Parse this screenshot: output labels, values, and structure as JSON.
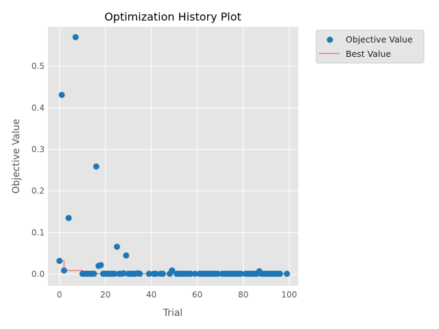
{
  "chart_data": {
    "type": "scatter",
    "title": "Optimization History Plot",
    "xlabel": "Trial",
    "ylabel": "Objective Value",
    "xlim": [
      -5,
      104
    ],
    "ylim": [
      -0.028,
      0.595
    ],
    "xticks": [
      0,
      20,
      40,
      60,
      80,
      100
    ],
    "yticks": [
      0.0,
      0.1,
      0.2,
      0.3,
      0.4,
      0.5
    ],
    "xtick_labels": [
      "0",
      "20",
      "40",
      "60",
      "80",
      "100"
    ],
    "ytick_labels": [
      "0.0",
      "0.1",
      "0.2",
      "0.3",
      "0.4",
      "0.5"
    ],
    "grid": true,
    "legend_position": "outside-top-right",
    "colors": {
      "scatter": "#1f77b4",
      "best_line": "#e8827e",
      "plot_bg": "#e5e5e5",
      "grid": "#ffffff"
    },
    "series": [
      {
        "name": "Objective Value",
        "kind": "scatter",
        "points": [
          [
            0,
            0.032
          ],
          [
            1,
            0.431
          ],
          [
            2,
            0.009
          ],
          [
            4,
            0.135
          ],
          [
            7,
            0.57
          ],
          [
            10,
            0.001
          ],
          [
            11,
            0.001
          ],
          [
            12,
            0.001
          ],
          [
            13,
            0.001
          ],
          [
            14,
            0.001
          ],
          [
            15,
            0.001
          ],
          [
            16,
            0.259
          ],
          [
            17,
            0.02
          ],
          [
            18,
            0.022
          ],
          [
            19,
            0.001
          ],
          [
            20,
            0.001
          ],
          [
            21,
            0.001
          ],
          [
            22,
            0.001
          ],
          [
            23,
            0.001
          ],
          [
            24,
            0.001
          ],
          [
            25,
            0.066
          ],
          [
            26,
            0.001
          ],
          [
            27,
            0.001
          ],
          [
            28,
            0.002
          ],
          [
            29,
            0.045
          ],
          [
            30,
            0.001
          ],
          [
            31,
            0.001
          ],
          [
            32,
            0.001
          ],
          [
            33,
            0.001
          ],
          [
            34,
            0.002
          ],
          [
            35,
            0.001
          ],
          [
            39,
            0.001
          ],
          [
            41,
            0.001
          ],
          [
            42,
            0.001
          ],
          [
            44,
            0.001
          ],
          [
            45,
            0.001
          ],
          [
            48,
            0.001
          ],
          [
            49,
            0.009
          ],
          [
            51,
            0.001
          ],
          [
            52,
            0.001
          ],
          [
            53,
            0.001
          ],
          [
            54,
            0.001
          ],
          [
            55,
            0.001
          ],
          [
            56,
            0.001
          ],
          [
            57,
            0.001
          ],
          [
            59,
            0.001
          ],
          [
            61,
            0.001
          ],
          [
            62,
            0.001
          ],
          [
            63,
            0.001
          ],
          [
            64,
            0.001
          ],
          [
            65,
            0.001
          ],
          [
            66,
            0.001
          ],
          [
            67,
            0.001
          ],
          [
            68,
            0.001
          ],
          [
            69,
            0.001
          ],
          [
            71,
            0.001
          ],
          [
            72,
            0.001
          ],
          [
            73,
            0.001
          ],
          [
            74,
            0.001
          ],
          [
            75,
            0.001
          ],
          [
            76,
            0.001
          ],
          [
            77,
            0.001
          ],
          [
            78,
            0.001
          ],
          [
            79,
            0.001
          ],
          [
            81,
            0.001
          ],
          [
            82,
            0.001
          ],
          [
            83,
            0.001
          ],
          [
            84,
            0.001
          ],
          [
            85,
            0.001
          ],
          [
            86,
            0.001
          ],
          [
            87,
            0.007
          ],
          [
            88,
            0.001
          ],
          [
            89,
            0.001
          ],
          [
            90,
            0.001
          ],
          [
            91,
            0.001
          ],
          [
            92,
            0.001
          ],
          [
            93,
            0.001
          ],
          [
            94,
            0.001
          ],
          [
            95,
            0.001
          ],
          [
            96,
            0.001
          ],
          [
            99,
            0.001
          ]
        ]
      },
      {
        "name": "Best Value",
        "kind": "step-line",
        "points": [
          [
            0,
            0.032
          ],
          [
            2,
            0.032
          ],
          [
            2,
            0.009
          ],
          [
            10,
            0.009
          ],
          [
            10,
            0.001
          ],
          [
            99,
            0.001
          ]
        ]
      }
    ]
  }
}
